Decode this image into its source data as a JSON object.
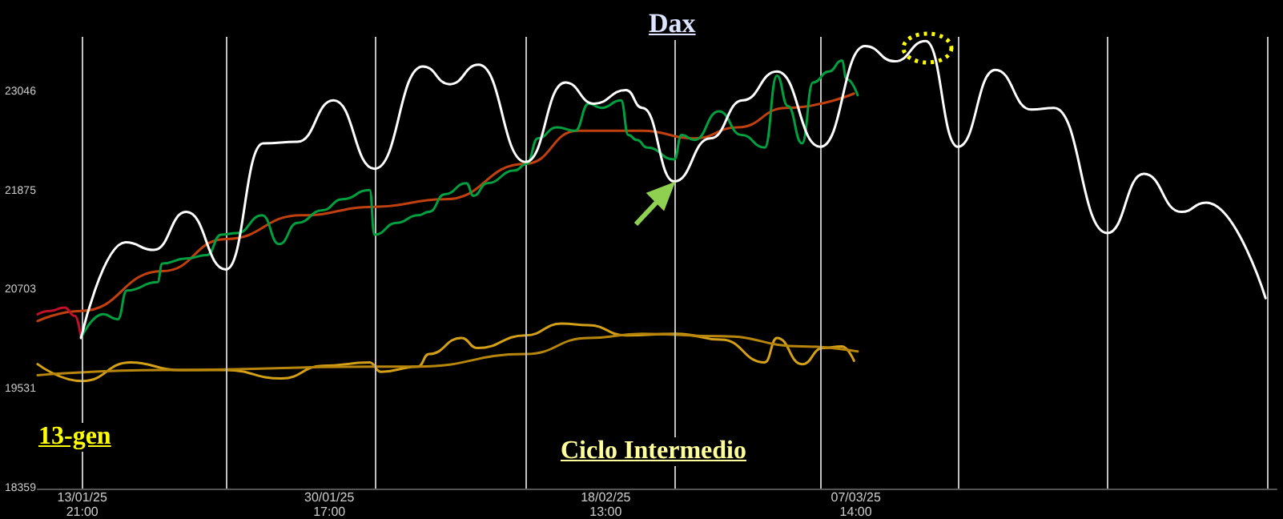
{
  "chart_data": {
    "type": "line",
    "title": "Dax",
    "annotations": [
      "13-gen",
      "Ciclo Intermedio"
    ],
    "xlim": [
      "2025-01-10T20:00",
      "2025-04-05T06:00"
    ],
    "xticks": [
      {
        "value": "2025-01-13T21:00",
        "label": "13/01/25 21:00"
      },
      {
        "value": "2025-01-30T17:00",
        "label": "30/01/25 17:00"
      },
      {
        "value": "2025-02-18T13:00",
        "label": "18/02/25 13:00"
      },
      {
        "value": "2025-03-07T14:00",
        "label": "07/03/25 14:00"
      }
    ],
    "ylim": [
      18359,
      23700
    ],
    "yticks": [
      18359,
      19531,
      20703,
      21875,
      23046
    ],
    "grid": false,
    "marker": "none",
    "line_style": "solid",
    "ref_lines": [
      {
        "axis": "x",
        "value": "2025-01-13T21:00",
        "color": "#c0c0c0"
      },
      {
        "axis": "x",
        "value": "2025-01-23T16:00",
        "color": "#c0c0c0"
      },
      {
        "axis": "x",
        "value": "2025-02-02T19:00",
        "color": "#c0c0c0"
      },
      {
        "axis": "x",
        "value": "2025-02-13T02:00",
        "color": "#c0c0c0"
      },
      {
        "axis": "x",
        "value": "2025-02-23T05:00",
        "color": "#c0c0c0"
      },
      {
        "axis": "x",
        "value": "2025-03-05T04:00",
        "color": "#c0c0c0"
      },
      {
        "axis": "x",
        "value": "2025-03-14T13:00",
        "color": "#c0c0c0"
      },
      {
        "axis": "x",
        "value": "2025-03-24T17:00",
        "color": "#c0c0c0"
      },
      {
        "axis": "x",
        "value": "2025-04-04T14:00",
        "color": "#c0c0c0"
      }
    ],
    "series": [
      {
        "color": "#d4a017",
        "x": [
          "2025-01-10T20:00",
          "2025-01-13T21:00",
          "2025-01-17T04:00",
          "2025-01-20T11:00",
          "2025-01-23T16:00",
          "2025-01-27T11:00",
          "2025-01-30T06:00",
          "2025-02-02T11:00",
          "2025-02-03T05:00",
          "2025-02-05T18:00",
          "2025-02-06T12:00",
          "2025-02-08T17:00",
          "2025-02-09T19:00",
          "2025-02-13T02:00",
          "2025-02-15T13:00",
          "2025-02-17T09:00",
          "2025-02-19T22:00",
          "2025-02-23T09:00",
          "2025-02-26T10:00",
          "2025-03-01T09:00",
          "2025-03-02T05:00",
          "2025-03-03T22:00",
          "2025-03-05T08:00",
          "2025-03-06T15:00",
          "2025-03-07T11:00"
        ],
        "values": [
          19830,
          19630,
          19850,
          19760,
          19760,
          19660,
          19810,
          19850,
          19740,
          19800,
          19950,
          20140,
          20020,
          20170,
          20310,
          20290,
          20170,
          20190,
          20120,
          19850,
          20140,
          19830,
          20020,
          20040,
          19870
        ]
      },
      {
        "color": "#b8860b",
        "x": [
          "2025-01-10T20:00",
          "2025-01-19T08:00",
          "2025-02-02T19:00",
          "2025-02-05T18:00",
          "2025-02-13T02:00",
          "2025-02-17T09:00",
          "2025-02-21T01:00",
          "2025-02-26T10:00",
          "2025-03-03T22:00",
          "2025-03-07T17:00"
        ],
        "values": [
          19700,
          19760,
          19800,
          19800,
          19950,
          20140,
          20190,
          20160,
          20040,
          19980
        ]
      },
      {
        "color": "#c04010",
        "x": [
          "2025-01-10T20:00",
          "2025-01-13T19:00",
          "2025-01-19T08:00",
          "2025-01-23T16:00",
          "2025-01-28T19:00",
          "2025-02-02T19:00",
          "2025-02-07T14:00",
          "2025-02-13T02:00",
          "2025-02-16T15:00",
          "2025-02-21T01:00",
          "2025-02-24T14:00",
          "2025-02-27T13:00",
          "2025-03-02T20:00",
          "2025-03-07T11:00"
        ],
        "values": [
          20340,
          20460,
          20930,
          21310,
          21590,
          21690,
          21780,
          22200,
          22590,
          22590,
          22500,
          22630,
          22860,
          23030
        ]
      },
      {
        "color": "#c0102a",
        "x": [
          "2025-01-10T20:00",
          "2025-01-11T16:00",
          "2025-01-12T16:00",
          "2025-01-13T09:00",
          "2025-01-13T19:00"
        ],
        "values": [
          20420,
          20460,
          20500,
          20400,
          20140
        ]
      },
      {
        "color": "#00a040",
        "x": [
          "2025-01-13T19:00",
          "2025-01-15T07:00",
          "2025-01-16T07:00",
          "2025-01-16T22:00",
          "2025-01-19T00:00",
          "2025-01-19T08:00",
          "2025-01-20T23:00",
          "2025-01-22T09:00",
          "2025-01-23T08:00",
          "2025-01-24T10:00",
          "2025-01-26T03:00",
          "2025-01-27T07:00",
          "2025-01-28T13:00",
          "2025-01-30T06:00",
          "2025-01-31T14:00",
          "2025-02-02T11:00",
          "2025-02-02T19:00",
          "2025-02-04T07:00",
          "2025-02-05T18:00",
          "2025-02-06T12:00",
          "2025-02-07T14:00",
          "2025-02-09T01:00",
          "2025-02-09T13:00",
          "2025-02-10T11:00",
          "2025-02-12T08:00",
          "2025-02-13T04:00",
          "2025-02-13T22:00",
          "2025-02-15T05:00",
          "2025-02-16T11:00",
          "2025-02-17T09:00",
          "2025-02-18T06:00",
          "2025-02-19T14:00",
          "2025-02-20T02:00",
          "2025-02-20T16:00",
          "2025-02-21T09:00",
          "2025-02-23T05:00",
          "2025-02-23T17:00",
          "2025-02-24T14:00",
          "2025-02-26T06:00",
          "2025-02-27T19:00",
          "2025-03-01T09:00",
          "2025-03-02T05:00",
          "2025-03-02T23:00",
          "2025-03-03T22:00",
          "2025-03-04T16:00",
          "2025-03-05T18:00",
          "2025-03-06T15:00",
          "2025-03-06T23:00",
          "2025-03-07T17:00"
        ],
        "values": [
          20140,
          20420,
          20360,
          20700,
          20800,
          21020,
          21080,
          21120,
          21360,
          21380,
          21590,
          21250,
          21500,
          21650,
          21780,
          21890,
          21360,
          21500,
          21590,
          21630,
          21840,
          21970,
          21820,
          21970,
          22120,
          22200,
          22500,
          22630,
          22590,
          22910,
          22860,
          22950,
          22540,
          22480,
          22390,
          22250,
          22540,
          22480,
          22820,
          22540,
          22390,
          23240,
          22880,
          22440,
          23160,
          23290,
          23420,
          23200,
          23010
        ]
      },
      {
        "color": "#ffffff",
        "x": [
          "2025-01-13T19:00",
          "2025-01-16T20:00",
          "2025-01-18T18:00",
          "2025-01-20T23:00",
          "2025-01-23T16:00",
          "2025-01-26T05:00",
          "2025-01-28T13:00",
          "2025-01-31T00:00",
          "2025-02-02T19:00",
          "2025-02-06T02:00",
          "2025-02-07T22:00",
          "2025-02-09T21:00",
          "2025-02-13T02:00",
          "2025-02-15T19:00",
          "2025-02-17T18:00",
          "2025-02-19T22:00",
          "2025-02-21T01:00",
          "2025-02-23T05:00",
          "2025-02-25T16:00",
          "2025-02-27T21:00",
          "2025-03-02T05:00",
          "2025-03-05T04:00",
          "2025-03-08T05:00",
          "2025-03-10T06:00",
          "2025-03-12T08:00",
          "2025-03-14T13:00",
          "2025-03-17T02:00",
          "2025-03-19T13:00",
          "2025-03-21T02:00",
          "2025-03-24T17:00",
          "2025-03-27T05:00",
          "2025-03-29T18:00",
          "2025-03-31T11:00",
          "2025-04-04T12:00"
        ],
        "values": [
          20140,
          21270,
          21180,
          21630,
          20950,
          22440,
          22460,
          22950,
          22140,
          23350,
          23140,
          23370,
          22220,
          23160,
          22910,
          23070,
          22860,
          21990,
          22500,
          22950,
          23290,
          22400,
          23590,
          23410,
          23650,
          22400,
          23310,
          22840,
          22860,
          21380,
          22080,
          21630,
          21740,
          20610
        ]
      }
    ]
  }
}
